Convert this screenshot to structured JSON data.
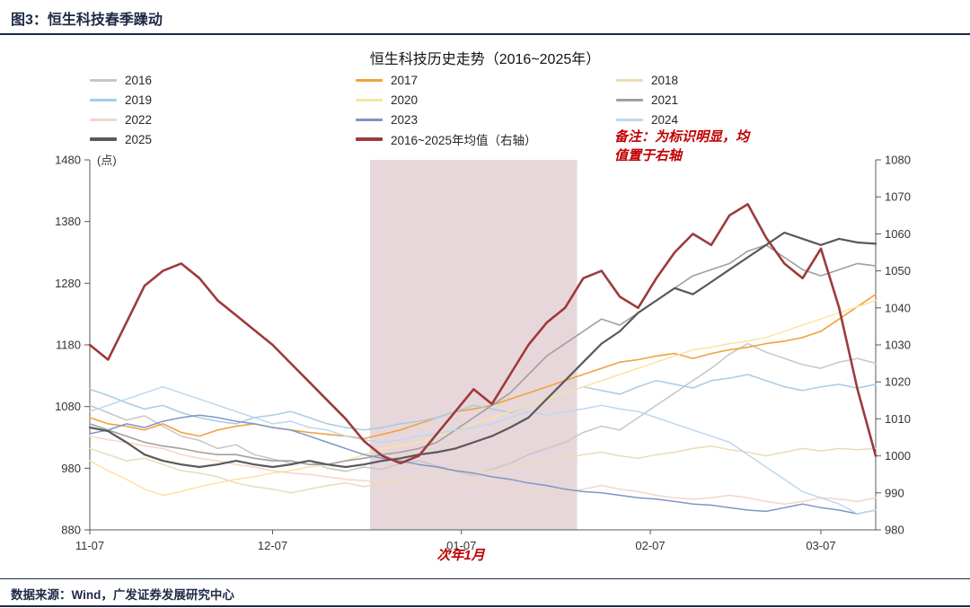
{
  "header": {
    "title": "图3：恒生科技春季躁动"
  },
  "chart": {
    "title": "恒生科技历史走势（2016~2025年）",
    "note_line1": "备注：为标识明显，均",
    "note_line2": "值置于右轴",
    "x_annotation": "次年1月"
  },
  "footer": {
    "source": "数据来源：Wind，广发证券发展研究中心"
  },
  "colors": {
    "accent_navy": "#1e2a45",
    "annotation_red": "#c00000",
    "mean_line": "#9d3a3c",
    "band": "#e7d7da"
  },
  "chart_data": {
    "type": "line",
    "title": "恒生科技历史走势（2016~2025年）",
    "xlabel": "",
    "ylabel": "(点)",
    "grid": false,
    "legend_position": "top",
    "left_axis": {
      "label": "(点)",
      "min": 880,
      "max": 1480,
      "ticks": [
        880,
        980,
        1080,
        1180,
        1280,
        1380,
        1480
      ]
    },
    "right_axis": {
      "label": "右轴",
      "min": 980,
      "max": 1080,
      "ticks": [
        980,
        990,
        1000,
        1010,
        1020,
        1030,
        1040,
        1050,
        1060,
        1070,
        1080
      ]
    },
    "x_days_total": 129,
    "x_ticks": [
      {
        "label": "11-07",
        "day": 0
      },
      {
        "label": "12-07",
        "day": 30
      },
      {
        "label": "01-07",
        "day": 61
      },
      {
        "label": "02-07",
        "day": 92
      },
      {
        "label": "03-07",
        "day": 120
      }
    ],
    "band": {
      "start_day": 46,
      "end_day": 80,
      "color": "#e7d7da",
      "label": "次年1月"
    },
    "x": [
      "11-07",
      "11-10",
      "11-13",
      "11-16",
      "11-19",
      "11-22",
      "11-25",
      "11-28",
      "12-01",
      "12-04",
      "12-07",
      "12-10",
      "12-13",
      "12-16",
      "12-19",
      "12-22",
      "12-25",
      "12-28",
      "12-31",
      "01-03",
      "01-06",
      "01-09",
      "01-12",
      "01-15",
      "01-18",
      "01-21",
      "01-24",
      "01-27",
      "01-30",
      "02-02",
      "02-05",
      "02-08",
      "02-11",
      "02-14",
      "02-17",
      "02-20",
      "02-23",
      "02-26",
      "03-01",
      "03-04",
      "03-07",
      "03-10",
      "03-13",
      "03-16"
    ],
    "series": [
      {
        "name": "2016",
        "axis": "left",
        "color": "#c6c6c6",
        "width": 1.5,
        "values": [
          1082,
          1070,
          1058,
          1065,
          1048,
          1032,
          1025,
          1012,
          1018,
          1002,
          995,
          988,
          992,
          980,
          975,
          982,
          978,
          988,
          992,
          984,
          975,
          968,
          978,
          988,
          1002,
          1012,
          1022,
          1038,
          1048,
          1042,
          1062,
          1082,
          1102,
          1122,
          1142,
          1165,
          1182,
          1168,
          1158,
          1148,
          1142,
          1152,
          1158,
          1150
        ]
      },
      {
        "name": "2017",
        "axis": "left",
        "color": "#f0a23c",
        "width": 1.6,
        "values": [
          1062,
          1052,
          1048,
          1042,
          1052,
          1038,
          1032,
          1042,
          1048,
          1052,
          1046,
          1042,
          1038,
          1035,
          1032,
          1028,
          1035,
          1042,
          1052,
          1062,
          1072,
          1076,
          1082,
          1092,
          1102,
          1112,
          1122,
          1132,
          1142,
          1152,
          1156,
          1162,
          1166,
          1158,
          1166,
          1172,
          1176,
          1182,
          1186,
          1192,
          1202,
          1222,
          1242,
          1262
        ]
      },
      {
        "name": "2018",
        "axis": "left",
        "color": "#eadcb6",
        "width": 1.5,
        "values": [
          1012,
          1002,
          992,
          996,
          986,
          976,
          972,
          966,
          956,
          950,
          946,
          940,
          946,
          952,
          956,
          950,
          956,
          962,
          966,
          972,
          976,
          970,
          976,
          982,
          986,
          992,
          996,
          1002,
          1006,
          1000,
          996,
          1002,
          1006,
          1012,
          1016,
          1010,
          1006,
          1000,
          1006,
          1012,
          1008,
          1012,
          1010,
          1012
        ]
      },
      {
        "name": "2019",
        "axis": "left",
        "color": "#a6cbe3",
        "width": 1.5,
        "values": [
          1108,
          1098,
          1086,
          1076,
          1082,
          1070,
          1062,
          1056,
          1052,
          1062,
          1066,
          1072,
          1062,
          1052,
          1046,
          1042,
          1046,
          1052,
          1056,
          1062,
          1072,
          1082,
          1076,
          1070,
          1082,
          1092,
          1102,
          1112,
          1106,
          1100,
          1112,
          1122,
          1116,
          1110,
          1122,
          1126,
          1132,
          1122,
          1112,
          1106,
          1112,
          1116,
          1110,
          1116
        ]
      },
      {
        "name": "2020",
        "axis": "left",
        "color": "#fbe3a4",
        "width": 1.5,
        "values": [
          992,
          976,
          962,
          946,
          936,
          942,
          950,
          956,
          962,
          966,
          972,
          976,
          982,
          986,
          992,
          1002,
          1012,
          1016,
          1022,
          1032,
          1042,
          1052,
          1062,
          1072,
          1082,
          1092,
          1102,
          1112,
          1122,
          1132,
          1142,
          1152,
          1162,
          1172,
          1176,
          1182,
          1186,
          1192,
          1202,
          1212,
          1222,
          1232,
          1242,
          1252
        ]
      },
      {
        "name": "2021",
        "axis": "left",
        "color": "#a0a0a0",
        "width": 1.6,
        "values": [
          1052,
          1042,
          1032,
          1022,
          1016,
          1012,
          1006,
          1002,
          1002,
          996,
          992,
          992,
          986,
          986,
          992,
          996,
          1002,
          1006,
          1012,
          1022,
          1042,
          1062,
          1082,
          1102,
          1132,
          1162,
          1182,
          1202,
          1222,
          1212,
          1232,
          1252,
          1272,
          1292,
          1302,
          1312,
          1332,
          1342,
          1322,
          1302,
          1292,
          1302,
          1312,
          1308
        ]
      },
      {
        "name": "2022",
        "axis": "left",
        "color": "#f3d6c8",
        "width": 1.5,
        "values": [
          1032,
          1026,
          1022,
          1016,
          1012,
          1002,
          996,
          992,
          986,
          982,
          976,
          972,
          970,
          966,
          962,
          960,
          956,
          952,
          950,
          946,
          952,
          956,
          952,
          946,
          942,
          940,
          942,
          946,
          952,
          946,
          942,
          936,
          932,
          930,
          932,
          936,
          932,
          926,
          922,
          926,
          932,
          930,
          926,
          932
        ]
      },
      {
        "name": "2023",
        "axis": "left",
        "color": "#7d96c6",
        "width": 1.5,
        "values": [
          1036,
          1042,
          1052,
          1046,
          1056,
          1062,
          1066,
          1062,
          1056,
          1052,
          1046,
          1042,
          1032,
          1022,
          1012,
          1002,
          996,
          992,
          986,
          982,
          976,
          972,
          966,
          962,
          956,
          952,
          946,
          942,
          940,
          936,
          932,
          930,
          926,
          922,
          920,
          916,
          912,
          910,
          916,
          922,
          916,
          912,
          906,
          912
        ]
      },
      {
        "name": "2024",
        "axis": "left",
        "color": "#bdd7ee",
        "width": 1.5,
        "values": [
          1072,
          1082,
          1092,
          1102,
          1112,
          1102,
          1092,
          1082,
          1072,
          1062,
          1052,
          1056,
          1046,
          1042,
          1032,
          1026,
          1022,
          1026,
          1032,
          1036,
          1042,
          1046,
          1052,
          1062,
          1072,
          1066,
          1072,
          1076,
          1082,
          1076,
          1072,
          1062,
          1052,
          1042,
          1032,
          1022,
          1002,
          982,
          962,
          942,
          932,
          922,
          906,
          912
        ]
      },
      {
        "name": "2025",
        "axis": "left",
        "color": "#595959",
        "width": 2.2,
        "values": [
          1046,
          1040,
          1022,
          1002,
          992,
          986,
          982,
          986,
          992,
          986,
          982,
          986,
          992,
          986,
          982,
          986,
          992,
          996,
          1002,
          1006,
          1012,
          1022,
          1032,
          1046,
          1062,
          1092,
          1122,
          1152,
          1182,
          1202,
          1232,
          1252,
          1272,
          1262,
          1282,
          1302,
          1322,
          1342,
          1362,
          1352,
          1342,
          1352,
          1346,
          1344
        ]
      },
      {
        "name": "2016~2025年均值（右轴）",
        "axis": "right",
        "color": "#9d3a3c",
        "width": 2.6,
        "values": [
          1030,
          1026,
          1036,
          1046,
          1050,
          1052,
          1048,
          1042,
          1038,
          1034,
          1030,
          1025,
          1020,
          1015,
          1010,
          1004,
          1000,
          998,
          1000,
          1006,
          1012,
          1018,
          1014,
          1022,
          1030,
          1036,
          1040,
          1048,
          1050,
          1043,
          1040,
          1048,
          1055,
          1060,
          1057,
          1065,
          1068,
          1059,
          1052,
          1048,
          1056,
          1040,
          1018,
          1000
        ]
      }
    ]
  }
}
